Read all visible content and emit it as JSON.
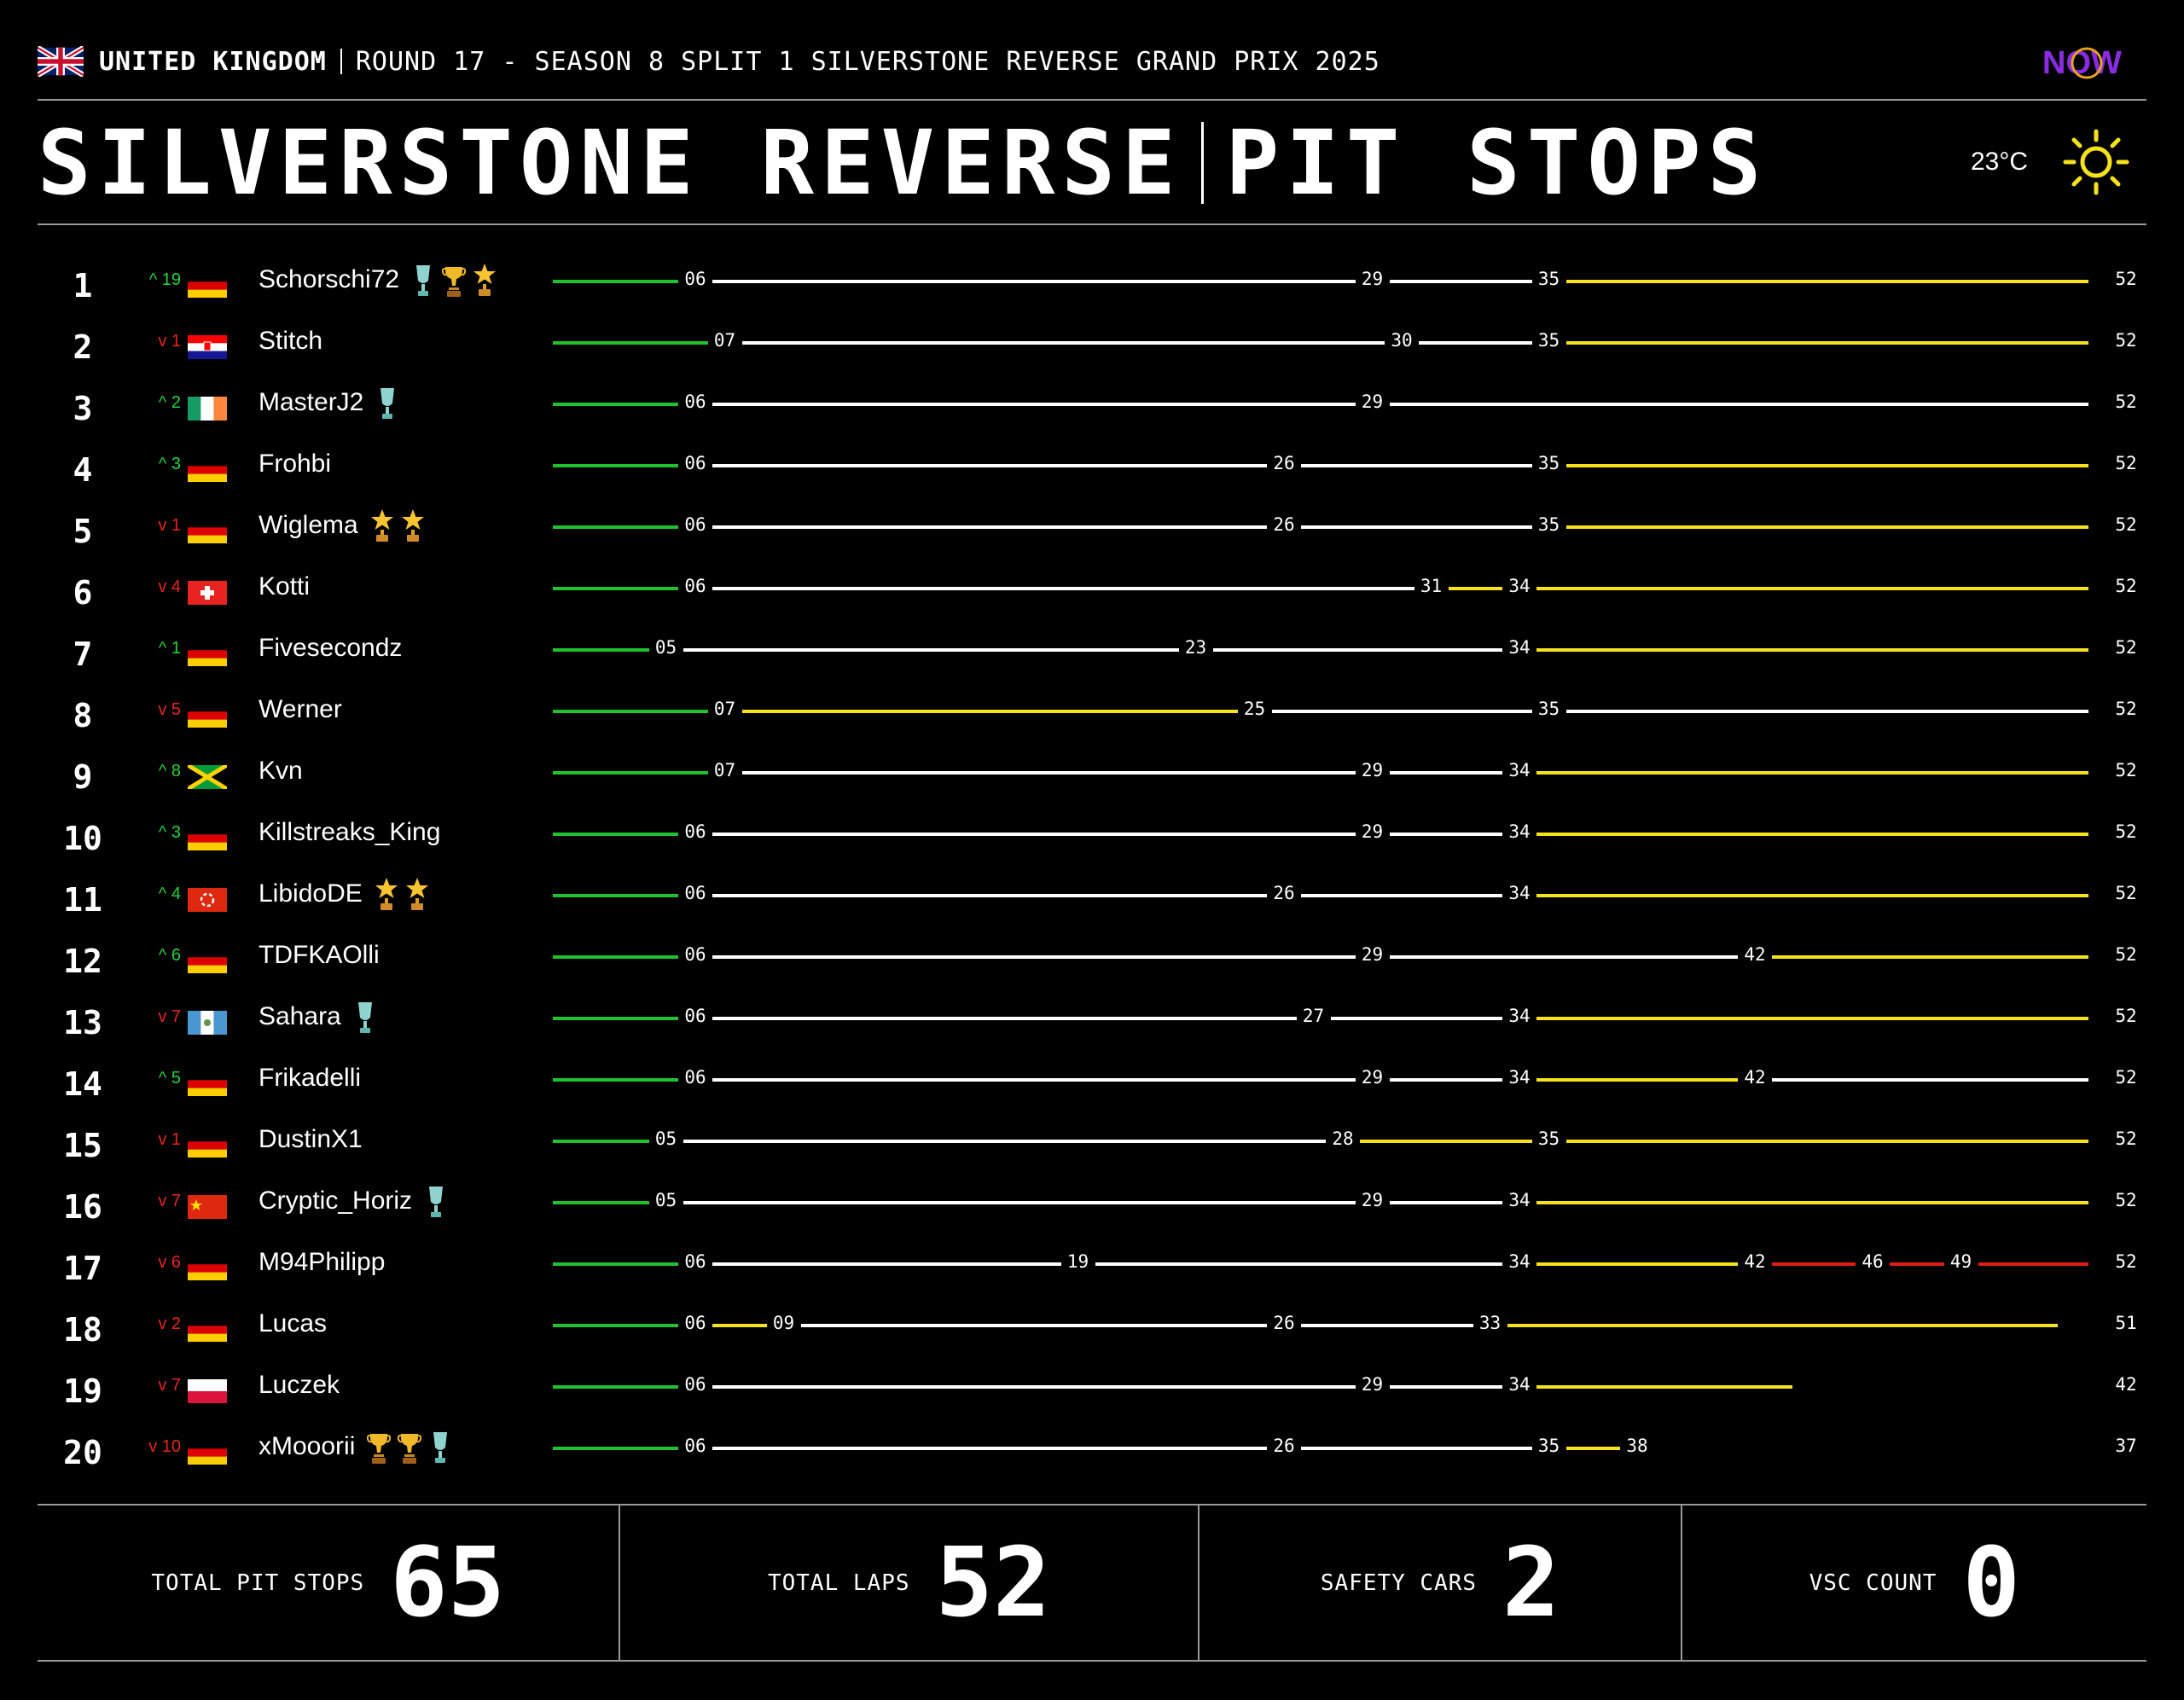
{
  "header": {
    "country": "UNITED KINGDOM",
    "round_text": "ROUND 17 - SEASON 8 SPLIT 1 SILVERSTONE REVERSE GRAND PRIX 2025",
    "logo_text": "NOW",
    "track": "SILVERSTONE REVERSE",
    "section": "PIT STOPS",
    "temperature": "23°C",
    "weather_icon": "sun-icon"
  },
  "colors": {
    "stint_green": "#1fc12e",
    "stint_white": "#ffffff",
    "stint_yellow": "#f5e21c",
    "stint_red": "#e01c14",
    "up": "#22d43a",
    "down": "#e8231f"
  },
  "total_laps": 52,
  "drivers": [
    {
      "pos": "1",
      "dir": "up",
      "change": "19",
      "flag": "de",
      "name": "Schorschi72",
      "awards": [
        "trophy-teal",
        "trophy-gold",
        "star-gold"
      ],
      "stops": [
        6,
        29,
        35
      ],
      "compounds": [
        "green",
        "white",
        "white",
        "yellow"
      ],
      "finish": 52
    },
    {
      "pos": "2",
      "dir": "down",
      "change": "1",
      "flag": "hr",
      "name": "Stitch",
      "awards": [],
      "stops": [
        7,
        30,
        35
      ],
      "compounds": [
        "green",
        "white",
        "white",
        "yellow"
      ],
      "finish": 52
    },
    {
      "pos": "3",
      "dir": "up",
      "change": "2",
      "flag": "ie",
      "name": "MasterJ2",
      "awards": [
        "trophy-teal"
      ],
      "stops": [
        6,
        29
      ],
      "compounds": [
        "green",
        "white",
        "white"
      ],
      "finish": 52
    },
    {
      "pos": "4",
      "dir": "up",
      "change": "3",
      "flag": "de",
      "name": "Frohbi",
      "awards": [],
      "stops": [
        6,
        26,
        35
      ],
      "compounds": [
        "green",
        "white",
        "white",
        "yellow"
      ],
      "finish": 52
    },
    {
      "pos": "5",
      "dir": "down",
      "change": "1",
      "flag": "de",
      "name": "Wiglema",
      "awards": [
        "star-gold",
        "star-gold"
      ],
      "stops": [
        6,
        26,
        35
      ],
      "compounds": [
        "green",
        "white",
        "white",
        "yellow"
      ],
      "finish": 52
    },
    {
      "pos": "6",
      "dir": "down",
      "change": "4",
      "flag": "ch",
      "name": "Kotti",
      "awards": [],
      "stops": [
        6,
        31,
        34
      ],
      "compounds": [
        "green",
        "white",
        "yellow",
        "yellow"
      ],
      "finish": 52
    },
    {
      "pos": "7",
      "dir": "up",
      "change": "1",
      "flag": "de",
      "name": "Fivesecondz",
      "awards": [],
      "stops": [
        5,
        23,
        34
      ],
      "compounds": [
        "green",
        "white",
        "white",
        "yellow"
      ],
      "finish": 52
    },
    {
      "pos": "8",
      "dir": "down",
      "change": "5",
      "flag": "de",
      "name": "Werner",
      "awards": [],
      "stops": [
        7,
        25,
        35
      ],
      "compounds": [
        "green",
        "yellow",
        "white",
        "white"
      ],
      "finish": 52
    },
    {
      "pos": "9",
      "dir": "up",
      "change": "8",
      "flag": "jm",
      "name": "Kvn",
      "awards": [],
      "stops": [
        7,
        29,
        34
      ],
      "compounds": [
        "green",
        "white",
        "white",
        "yellow"
      ],
      "finish": 52
    },
    {
      "pos": "10",
      "dir": "up",
      "change": "3",
      "flag": "de",
      "name": "Killstreaks_King",
      "awards": [],
      "stops": [
        6,
        29,
        34
      ],
      "compounds": [
        "green",
        "white",
        "white",
        "yellow"
      ],
      "finish": 52
    },
    {
      "pos": "11",
      "dir": "up",
      "change": "4",
      "flag": "hk",
      "name": "LibidoDE",
      "awards": [
        "star-gold",
        "star-gold"
      ],
      "stops": [
        6,
        26,
        34
      ],
      "compounds": [
        "green",
        "white",
        "white",
        "yellow"
      ],
      "finish": 52
    },
    {
      "pos": "12",
      "dir": "up",
      "change": "6",
      "flag": "de",
      "name": "TDFKAOlli",
      "awards": [],
      "stops": [
        6,
        29,
        42
      ],
      "compounds": [
        "green",
        "white",
        "white",
        "yellow"
      ],
      "finish": 52
    },
    {
      "pos": "13",
      "dir": "down",
      "change": "7",
      "flag": "gt",
      "name": "Sahara",
      "awards": [
        "trophy-teal"
      ],
      "stops": [
        6,
        27,
        34
      ],
      "compounds": [
        "green",
        "white",
        "white",
        "yellow"
      ],
      "finish": 52
    },
    {
      "pos": "14",
      "dir": "up",
      "change": "5",
      "flag": "de",
      "name": "Frikadelli",
      "awards": [],
      "stops": [
        6,
        29,
        34,
        42
      ],
      "compounds": [
        "green",
        "white",
        "white",
        "yellow",
        "white"
      ],
      "finish": 52
    },
    {
      "pos": "15",
      "dir": "down",
      "change": "1",
      "flag": "de",
      "name": "DustinX1",
      "awards": [],
      "stops": [
        5,
        28,
        35
      ],
      "compounds": [
        "green",
        "white",
        "yellow",
        "yellow"
      ],
      "finish": 52
    },
    {
      "pos": "16",
      "dir": "down",
      "change": "7",
      "flag": "cn",
      "name": "Cryptic_Horiz",
      "awards": [
        "trophy-teal"
      ],
      "stops": [
        5,
        29,
        34
      ],
      "compounds": [
        "green",
        "white",
        "white",
        "yellow"
      ],
      "finish": 52
    },
    {
      "pos": "17",
      "dir": "down",
      "change": "6",
      "flag": "de",
      "name": "M94Philipp",
      "awards": [],
      "stops": [
        6,
        19,
        34,
        42,
        46,
        49
      ],
      "compounds": [
        "green",
        "white",
        "white",
        "yellow",
        "red",
        "red",
        "red"
      ],
      "finish": 52
    },
    {
      "pos": "18",
      "dir": "down",
      "change": "2",
      "flag": "de",
      "name": "Lucas",
      "awards": [],
      "stops": [
        6,
        9,
        26,
        33
      ],
      "compounds": [
        "green",
        "yellow",
        "white",
        "white",
        "yellow"
      ],
      "finish": 51
    },
    {
      "pos": "19",
      "dir": "down",
      "change": "7",
      "flag": "pl",
      "name": "Luczek",
      "awards": [],
      "stops": [
        6,
        29,
        34
      ],
      "compounds": [
        "green",
        "white",
        "white",
        "yellow"
      ],
      "finish": 42
    },
    {
      "pos": "20",
      "dir": "down",
      "change": "10",
      "flag": "de",
      "name": "xMooorii",
      "awards": [
        "trophy-gold",
        "trophy-gold",
        "trophy-teal"
      ],
      "stops": [
        6,
        26,
        35,
        38
      ],
      "compounds": [
        "green",
        "white",
        "white",
        "yellow"
      ],
      "finish": 37
    }
  ],
  "stats": [
    {
      "label": "TOTAL PIT STOPS",
      "value": "65"
    },
    {
      "label": "TOTAL LAPS",
      "value": "52"
    },
    {
      "label": "SAFETY CARS",
      "value": "2"
    },
    {
      "label": "VSC COUNT",
      "value": "0"
    }
  ]
}
